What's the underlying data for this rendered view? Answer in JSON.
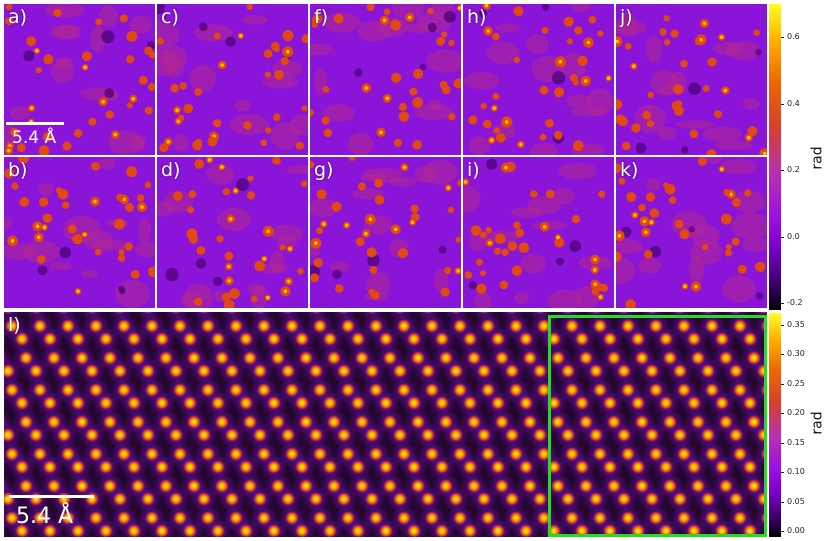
{
  "figure": {
    "top_panels": [
      {
        "label": "a)"
      },
      {
        "label": "c)"
      },
      {
        "label": "f)"
      },
      {
        "label": "h)"
      },
      {
        "label": "j)"
      },
      {
        "label": "b)"
      },
      {
        "label": "d)"
      },
      {
        "label": "g)"
      },
      {
        "label": "i)"
      },
      {
        "label": "k)"
      }
    ],
    "bottom_panel": {
      "label": "l)"
    },
    "scalebar_top": "5.4 Å",
    "scalebar_bottom": "5.4 Å",
    "colorbar_top": {
      "unit": "rad",
      "ticks": [
        "0.6",
        "0.4",
        "0.2",
        "0.0",
        "-0.2"
      ],
      "range": [
        -0.22,
        0.7
      ],
      "colormap": "gnuplot-style black-purple-red-orange-yellow"
    },
    "colorbar_bottom": {
      "unit": "rad",
      "ticks": [
        "0.35",
        "0.30",
        "0.25",
        "0.20",
        "0.15",
        "0.10",
        "0.05",
        "0.00"
      ],
      "range": [
        -0.01,
        0.37
      ],
      "colormap": "gnuplot-style black-purple-red-orange-yellow"
    },
    "highlight_box_color": "#22dd22",
    "grid_line_color": "#ffffff"
  }
}
